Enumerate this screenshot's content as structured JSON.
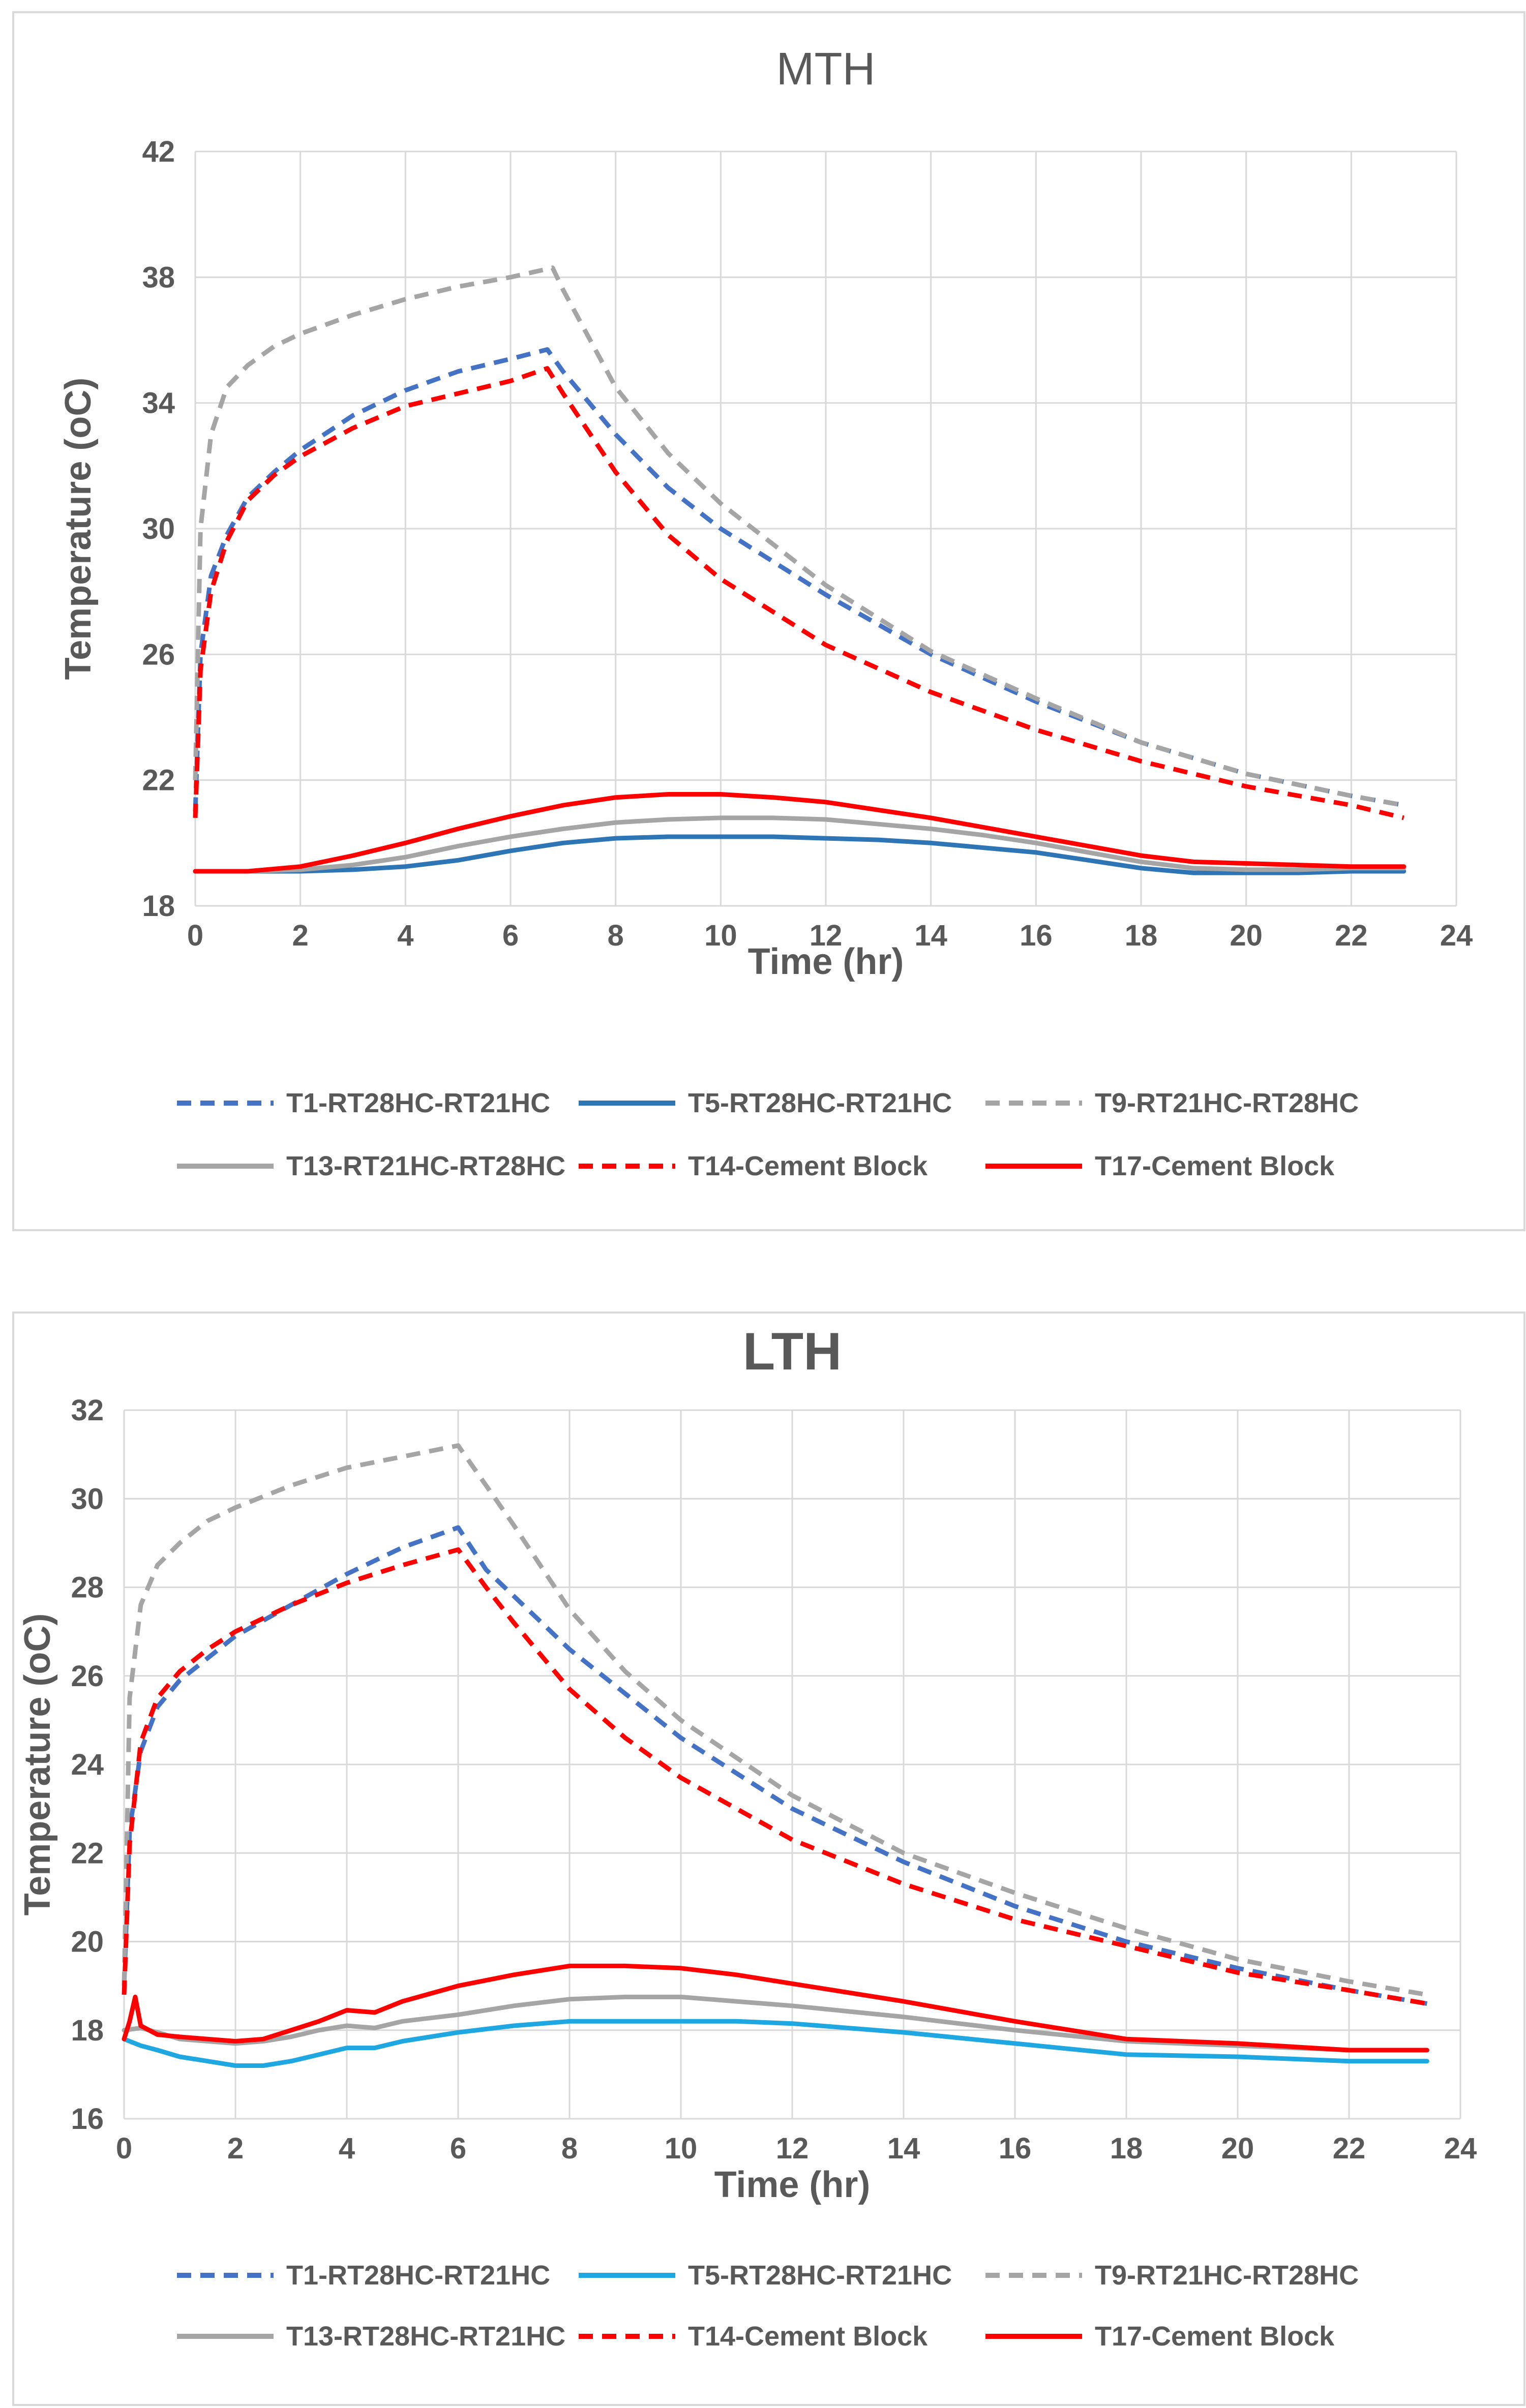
{
  "chart_data": [
    {
      "type": "line",
      "title": "MTH",
      "xlabel": "Time (hr)",
      "ylabel": "Temperature (oC)",
      "xlim": [
        0,
        24
      ],
      "ylim": [
        18,
        42
      ],
      "xticks": [
        0,
        2,
        4,
        6,
        8,
        10,
        12,
        14,
        16,
        18,
        20,
        22,
        24
      ],
      "yticks": [
        18,
        22,
        26,
        30,
        34,
        38,
        42
      ],
      "grid": true,
      "legend_position": "bottom",
      "series": [
        {
          "name": "T1-RT28HC-RT21HC",
          "color": "#4472c4",
          "style": "dashed",
          "x": [
            0,
            0.1,
            0.3,
            0.6,
            1,
            1.5,
            2,
            3,
            4,
            5,
            6,
            6.7,
            7,
            8,
            9,
            10,
            12,
            14,
            16,
            18,
            20,
            22,
            23
          ],
          "y": [
            21,
            26,
            28.5,
            29.8,
            31,
            31.8,
            32.5,
            33.6,
            34.4,
            35,
            35.4,
            35.7,
            35,
            33,
            31.3,
            30,
            27.9,
            26,
            24.5,
            23.2,
            22.2,
            21.5,
            21.2
          ]
        },
        {
          "name": "T5-RT28HC-RT21HC",
          "color": "#2e75b6",
          "style": "solid",
          "x": [
            0,
            1,
            2,
            3,
            4,
            5,
            6,
            7,
            8,
            9,
            10,
            11,
            12,
            13,
            14,
            15,
            16,
            17,
            18,
            19,
            20,
            21,
            22,
            23
          ],
          "y": [
            19.1,
            19.1,
            19.1,
            19.15,
            19.25,
            19.45,
            19.75,
            20.0,
            20.15,
            20.2,
            20.2,
            20.2,
            20.15,
            20.1,
            20.0,
            19.85,
            19.7,
            19.45,
            19.2,
            19.05,
            19.05,
            19.05,
            19.1,
            19.1
          ]
        },
        {
          "name": "T9-RT21HC-RT28HC",
          "color": "#a5a5a5",
          "style": "dashed",
          "x": [
            0,
            0.1,
            0.3,
            0.6,
            1,
            1.5,
            2,
            3,
            4,
            5,
            6,
            6.8,
            7,
            8,
            9,
            10,
            12,
            14,
            16,
            18,
            20,
            22,
            23
          ],
          "y": [
            22,
            30,
            33,
            34.5,
            35.2,
            35.8,
            36.2,
            36.8,
            37.3,
            37.7,
            38.0,
            38.3,
            37.6,
            34.5,
            32.4,
            30.8,
            28.2,
            26.1,
            24.6,
            23.2,
            22.2,
            21.5,
            21.2
          ]
        },
        {
          "name": "T13-RT21HC-RT28HC",
          "color": "#a5a5a5",
          "style": "solid",
          "x": [
            0,
            1,
            2,
            3,
            4,
            5,
            6,
            7,
            8,
            9,
            10,
            11,
            12,
            13,
            14,
            15,
            16,
            17,
            18,
            19,
            20,
            21,
            22,
            23
          ],
          "y": [
            19.1,
            19.1,
            19.15,
            19.3,
            19.55,
            19.9,
            20.2,
            20.45,
            20.65,
            20.75,
            20.8,
            20.8,
            20.75,
            20.6,
            20.45,
            20.25,
            20.0,
            19.7,
            19.4,
            19.2,
            19.15,
            19.15,
            19.2,
            19.2
          ]
        },
        {
          "name": "T14-Cement Block",
          "color": "#ff0000",
          "style": "dashed",
          "x": [
            0,
            0.1,
            0.3,
            0.6,
            1,
            1.5,
            2,
            3,
            4,
            5,
            6,
            6.7,
            7,
            8,
            9,
            10,
            12,
            14,
            16,
            18,
            20,
            22,
            23
          ],
          "y": [
            20.8,
            25.5,
            28.0,
            29.6,
            30.9,
            31.7,
            32.3,
            33.2,
            33.9,
            34.3,
            34.7,
            35.1,
            34.3,
            31.8,
            29.8,
            28.4,
            26.3,
            24.8,
            23.6,
            22.6,
            21.8,
            21.2,
            20.8
          ]
        },
        {
          "name": "T17-Cement Block",
          "color": "#ff0000",
          "style": "solid",
          "x": [
            0,
            1,
            2,
            3,
            4,
            5,
            6,
            7,
            8,
            9,
            10,
            11,
            12,
            13,
            14,
            15,
            16,
            17,
            18,
            19,
            20,
            21,
            22,
            23
          ],
          "y": [
            19.1,
            19.1,
            19.25,
            19.6,
            20.0,
            20.45,
            20.85,
            21.2,
            21.45,
            21.55,
            21.55,
            21.45,
            21.3,
            21.05,
            20.8,
            20.5,
            20.2,
            19.9,
            19.6,
            19.4,
            19.35,
            19.3,
            19.25,
            19.25
          ]
        }
      ]
    },
    {
      "type": "line",
      "title": "LTH",
      "xlabel": "Time (hr)",
      "ylabel": "Temperature (oC)",
      "xlim": [
        0,
        24
      ],
      "ylim": [
        16,
        32
      ],
      "xticks": [
        0,
        2,
        4,
        6,
        8,
        10,
        12,
        14,
        16,
        18,
        20,
        22,
        24
      ],
      "yticks": [
        16,
        18,
        20,
        22,
        24,
        26,
        28,
        30,
        32
      ],
      "grid": true,
      "legend_position": "bottom",
      "series": [
        {
          "name": "T1-RT28HC-RT21HC",
          "color": "#4472c4",
          "style": "dashed",
          "x": [
            0,
            0.1,
            0.3,
            0.6,
            1,
            1.5,
            2,
            3,
            4,
            5,
            6,
            6.5,
            7,
            8,
            9,
            10,
            12,
            14,
            16,
            18,
            20,
            22,
            23.4
          ],
          "y": [
            19,
            22.5,
            24.3,
            25.3,
            25.9,
            26.4,
            26.9,
            27.6,
            28.3,
            28.9,
            29.35,
            28.4,
            27.8,
            26.6,
            25.6,
            24.6,
            23.0,
            21.8,
            20.8,
            20.0,
            19.4,
            18.9,
            18.6
          ]
        },
        {
          "name": "T5-RT28HC-RT21HC",
          "color": "#1ea7e1",
          "style": "solid",
          "x": [
            0,
            0.3,
            0.6,
            1,
            1.5,
            2,
            2.5,
            3,
            3.5,
            4,
            4.5,
            5,
            6,
            7,
            8,
            9,
            10,
            11,
            12,
            14,
            16,
            18,
            20,
            22,
            23.4
          ],
          "y": [
            17.8,
            17.65,
            17.55,
            17.4,
            17.3,
            17.2,
            17.2,
            17.3,
            17.45,
            17.6,
            17.6,
            17.75,
            17.95,
            18.1,
            18.2,
            18.2,
            18.2,
            18.2,
            18.15,
            17.95,
            17.7,
            17.45,
            17.4,
            17.3,
            17.3
          ]
        },
        {
          "name": "T9-RT21HC-RT28HC",
          "color": "#a5a5a5",
          "style": "dashed",
          "x": [
            0,
            0.1,
            0.3,
            0.6,
            1,
            1.5,
            2,
            3,
            4,
            5,
            6,
            6.5,
            7,
            8,
            9,
            10,
            12,
            14,
            16,
            18,
            20,
            22,
            23.4
          ],
          "y": [
            19,
            25.5,
            27.6,
            28.5,
            29.0,
            29.5,
            29.8,
            30.3,
            30.7,
            30.95,
            31.2,
            30.3,
            29.4,
            27.5,
            26.1,
            25.0,
            23.3,
            22.0,
            21.1,
            20.3,
            19.6,
            19.1,
            18.8
          ]
        },
        {
          "name": "T13-RT28HC-RT21HC",
          "color": "#a5a5a5",
          "style": "solid",
          "x": [
            0,
            0.3,
            0.6,
            1,
            1.5,
            2,
            2.5,
            3,
            3.5,
            4,
            4.5,
            5,
            6,
            7,
            8,
            9,
            10,
            11,
            12,
            14,
            16,
            18,
            20,
            22,
            23.4
          ],
          "y": [
            18.0,
            18.05,
            17.95,
            17.8,
            17.75,
            17.7,
            17.75,
            17.85,
            18.0,
            18.1,
            18.05,
            18.2,
            18.35,
            18.55,
            18.7,
            18.75,
            18.75,
            18.65,
            18.55,
            18.3,
            18.0,
            17.75,
            17.65,
            17.55,
            17.55
          ]
        },
        {
          "name": "T14-Cement Block",
          "color": "#ff0000",
          "style": "dashed",
          "x": [
            0,
            0.1,
            0.3,
            0.6,
            1,
            1.5,
            2,
            3,
            4,
            5,
            6,
            6.5,
            7,
            8,
            9,
            10,
            12,
            14,
            16,
            18,
            20,
            22,
            23.4
          ],
          "y": [
            18.8,
            22.2,
            24.5,
            25.5,
            26.1,
            26.6,
            27.0,
            27.6,
            28.1,
            28.5,
            28.85,
            28.0,
            27.2,
            25.7,
            24.6,
            23.7,
            22.3,
            21.3,
            20.5,
            19.9,
            19.3,
            18.9,
            18.6
          ]
        },
        {
          "name": "T17-Cement Block",
          "color": "#ff0000",
          "style": "solid",
          "x": [
            0,
            0.1,
            0.2,
            0.3,
            0.6,
            1,
            1.5,
            2,
            2.5,
            3,
            3.5,
            4,
            4.5,
            5,
            6,
            7,
            8,
            9,
            10,
            11,
            12,
            14,
            16,
            18,
            20,
            22,
            23.4
          ],
          "y": [
            17.8,
            18.2,
            18.75,
            18.1,
            17.9,
            17.85,
            17.8,
            17.75,
            17.8,
            18.0,
            18.2,
            18.45,
            18.4,
            18.65,
            19.0,
            19.25,
            19.45,
            19.45,
            19.4,
            19.25,
            19.05,
            18.65,
            18.2,
            17.8,
            17.7,
            17.55,
            17.55
          ]
        }
      ]
    }
  ]
}
